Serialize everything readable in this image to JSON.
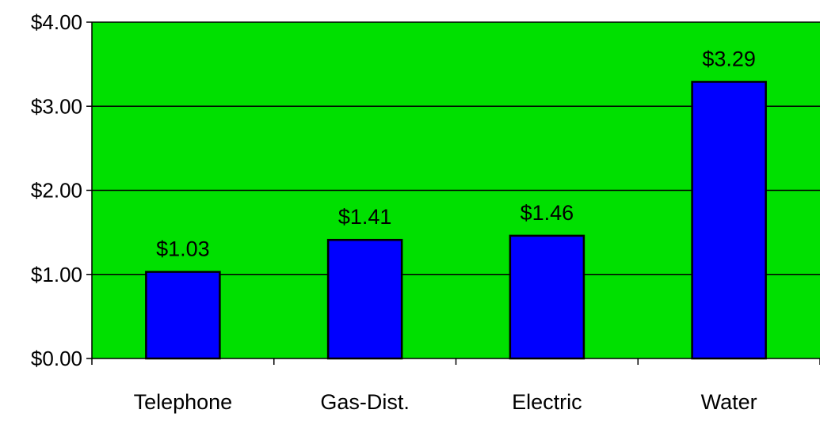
{
  "chart_data": {
    "type": "bar",
    "title": "",
    "xlabel": "",
    "ylabel": "",
    "categories": [
      "Telephone",
      "Gas-Dist.",
      "Electric",
      "Water"
    ],
    "values": [
      1.03,
      1.41,
      1.46,
      3.29
    ],
    "data_labels": [
      "$1.03",
      "$1.41",
      "$1.46",
      "$3.29"
    ],
    "ylim": [
      0,
      4
    ],
    "yticks": [
      0,
      1,
      2,
      3,
      4
    ],
    "ytick_labels": [
      "$0.00",
      "$1.00",
      "$2.00",
      "$3.00",
      "$4.00"
    ],
    "grid": true,
    "legend": "none",
    "colors": {
      "plot_background": "#00E000",
      "bar_fill": "#0000FF",
      "bar_stroke": "#000000",
      "gridline": "#000000"
    }
  }
}
